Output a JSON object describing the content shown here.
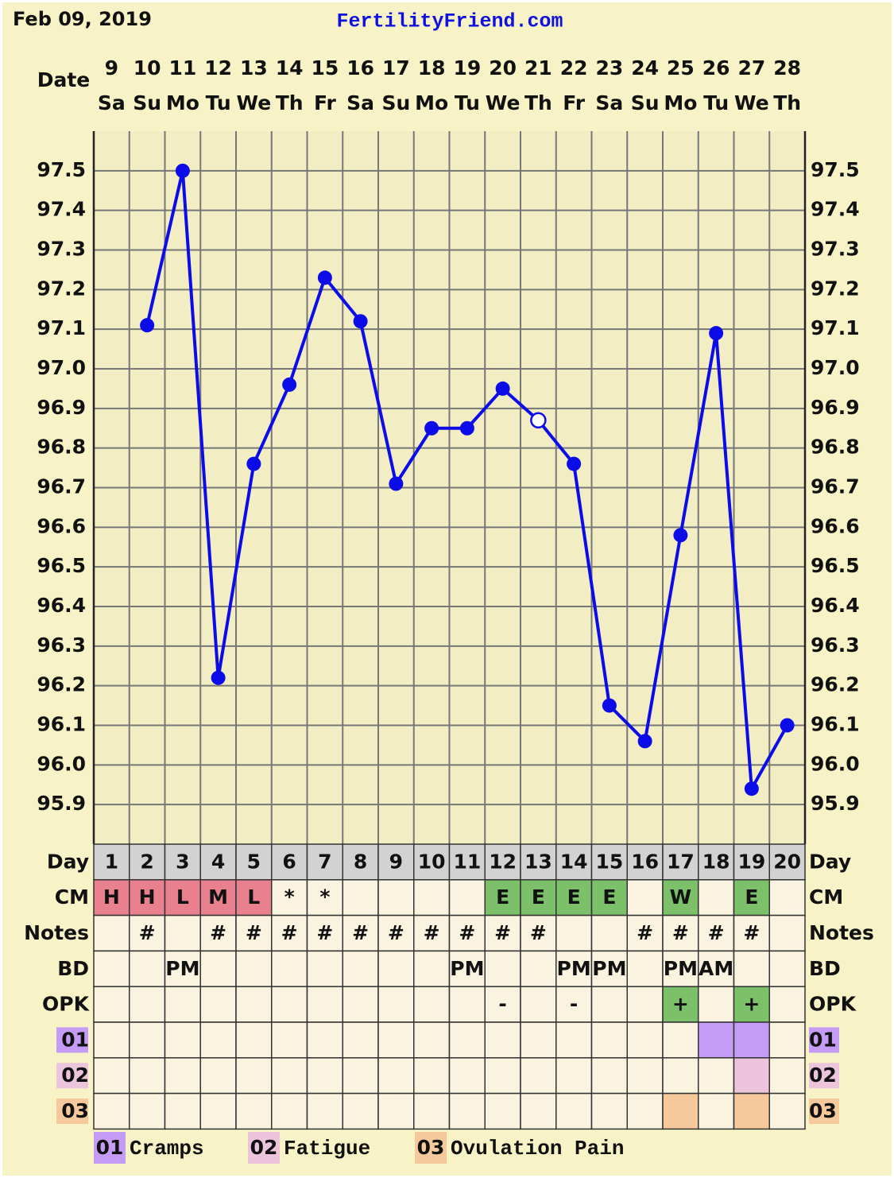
{
  "header": {
    "date": "Feb 09, 2019",
    "site": "FertilityFriend.com"
  },
  "chart_data": {
    "type": "line",
    "x_label": "Date",
    "categories": [
      "9",
      "10",
      "11",
      "12",
      "13",
      "14",
      "15",
      "16",
      "17",
      "18",
      "19",
      "20",
      "21",
      "22",
      "23",
      "24",
      "25",
      "26",
      "27",
      "28"
    ],
    "weekdays": [
      "Sa",
      "Su",
      "Mo",
      "Tu",
      "We",
      "Th",
      "Fr",
      "Sa",
      "Su",
      "Mo",
      "Tu",
      "We",
      "Th",
      "Fr",
      "Sa",
      "Su",
      "Mo",
      "Tu",
      "We",
      "Th"
    ],
    "values": [
      null,
      97.11,
      97.5,
      96.22,
      96.76,
      96.96,
      97.23,
      97.12,
      96.71,
      96.85,
      96.85,
      96.95,
      96.87,
      96.76,
      96.15,
      96.06,
      96.58,
      97.09,
      95.94,
      96.1
    ],
    "open_points": [
      12
    ],
    "color": "#0c0ce8",
    "ylim": [
      95.8,
      97.6
    ],
    "yticks": [
      95.9,
      {
        "value": 96.0,
        "label": "96.0"
      },
      96.1,
      96.2,
      96.3,
      96.4,
      96.5,
      96.6,
      96.7,
      96.8,
      96.9,
      {
        "value": 97.0,
        "label": "97.0"
      },
      97.1,
      97.2,
      97.3,
      97.4,
      97.5
    ],
    "grid": true
  },
  "table": {
    "rows": [
      {
        "label": "Day",
        "cells": [
          1,
          2,
          3,
          4,
          5,
          6,
          7,
          8,
          9,
          10,
          11,
          12,
          13,
          14,
          15,
          16,
          17,
          18,
          19,
          20
        ]
      },
      {
        "label": "CM",
        "cells": [
          "H",
          "H",
          "L",
          "M",
          "L",
          "*",
          "*",
          null,
          null,
          null,
          null,
          "E",
          "E",
          "E",
          "E",
          null,
          "W",
          null,
          "E",
          null
        ],
        "colors": [
          "#e9808e",
          "#e9808e",
          "#e9808e",
          "#e9808e",
          "#e9808e",
          null,
          null,
          null,
          null,
          null,
          null,
          "#7cc06a",
          "#7cc06a",
          "#7cc06a",
          "#7cc06a",
          null,
          "#7cc06a",
          null,
          "#7cc06a",
          null
        ]
      },
      {
        "label": "Notes",
        "cells": [
          null,
          "#",
          null,
          "#",
          "#",
          "#",
          "#",
          "#",
          "#",
          "#",
          "#",
          "#",
          "#",
          null,
          null,
          "#",
          "#",
          "#",
          "#",
          null
        ]
      },
      {
        "label": "BD",
        "cells": [
          null,
          null,
          "PM",
          null,
          null,
          null,
          null,
          null,
          null,
          null,
          "PM",
          null,
          null,
          "PM",
          "PM",
          null,
          "PM",
          "AM",
          null,
          null
        ]
      },
      {
        "label": "OPK",
        "cells": [
          null,
          null,
          null,
          null,
          null,
          null,
          null,
          null,
          null,
          null,
          null,
          "-",
          null,
          "-",
          null,
          null,
          "+",
          null,
          "+",
          null
        ],
        "colors": [
          null,
          null,
          null,
          null,
          null,
          null,
          null,
          null,
          null,
          null,
          null,
          null,
          null,
          null,
          null,
          null,
          "#7cc06a",
          null,
          "#7cc06a",
          null
        ]
      },
      {
        "label": "01",
        "color": "#c49cf6",
        "colors": [
          null,
          null,
          null,
          null,
          null,
          null,
          null,
          null,
          null,
          null,
          null,
          null,
          null,
          null,
          null,
          null,
          null,
          "#c49cf6",
          "#c49cf6",
          null
        ]
      },
      {
        "label": "02",
        "color": "#ecc4dc",
        "colors": [
          null,
          null,
          null,
          null,
          null,
          null,
          null,
          null,
          null,
          null,
          null,
          null,
          null,
          null,
          null,
          null,
          null,
          null,
          "#ecc4dc",
          null
        ]
      },
      {
        "label": "03",
        "color": "#f6c99c",
        "colors": [
          null,
          null,
          null,
          null,
          null,
          null,
          null,
          null,
          null,
          null,
          null,
          null,
          null,
          null,
          null,
          null,
          "#f6c99c",
          null,
          "#f6c99c",
          null
        ]
      }
    ]
  },
  "legend": [
    {
      "code": "01",
      "label": "Cramps",
      "color": "#c49cf6"
    },
    {
      "code": "02",
      "label": "Fatigue",
      "color": "#ecc4dc"
    },
    {
      "code": "03",
      "label": "Ovulation Pain",
      "color": "#f6c99c"
    }
  ]
}
